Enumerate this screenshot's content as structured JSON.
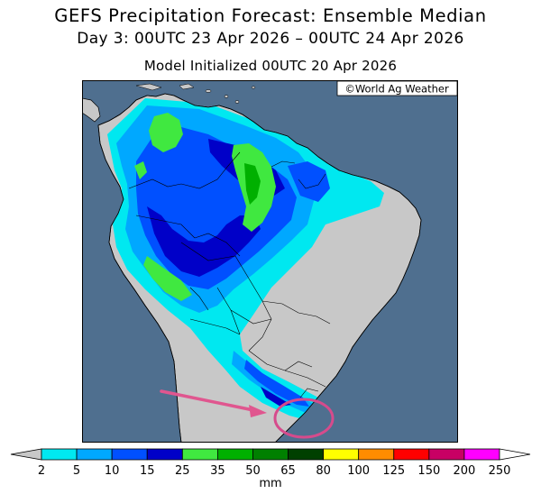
{
  "header": {
    "title": "GEFS Precipitation Forecast: Ensemble Median",
    "period": "Day 3: 00UTC 23 Apr 2026 – 00UTC 24 Apr 2026",
    "init": "Model Initialized 00UTC 20 Apr 2026"
  },
  "map": {
    "credit": "©World Ag Weather",
    "ocean_color": "#4f6f8f",
    "land_color": "#c8c8c8",
    "annotation": {
      "arrow_color": "#e0568f",
      "circle_color": "#d64b8c"
    }
  },
  "legend": {
    "ticks": [
      "2",
      "5",
      "10",
      "15",
      "25",
      "35",
      "50",
      "65",
      "80",
      "100",
      "125",
      "150",
      "200",
      "250"
    ],
    "colors": [
      "#00e8f0",
      "#00a8ff",
      "#0050ff",
      "#0000c8",
      "#40e840",
      "#00b000",
      "#008000",
      "#004000",
      "#ffff00",
      "#ff8c00",
      "#ff0000",
      "#c80064",
      "#ff00ff",
      "#a040c8"
    ],
    "unit": "mm"
  }
}
